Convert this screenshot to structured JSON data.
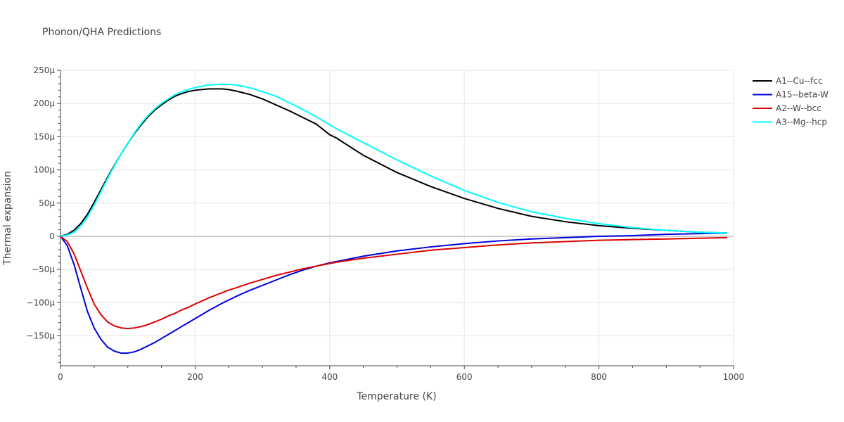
{
  "chart_data": {
    "type": "line",
    "title": "Phonon/QHA Predictions",
    "xlabel": "Temperature (K)",
    "ylabel": "Thermal expansion",
    "xlim": [
      0,
      1000
    ],
    "ylim": [
      -195,
      250
    ],
    "x_ticks": [
      0,
      200,
      400,
      600,
      800,
      1000
    ],
    "x_tick_labels": [
      "0",
      "200",
      "400",
      "600",
      "800",
      "1000"
    ],
    "y_ticks": [
      -150,
      -100,
      -50,
      0,
      50,
      100,
      150,
      200,
      250
    ],
    "y_tick_labels": [
      "−150μ",
      "−100μ",
      "−50μ",
      "0",
      "50μ",
      "100μ",
      "150μ",
      "200μ",
      "250μ"
    ],
    "y_unit": "μ",
    "grid": true,
    "legend_position": "top-right",
    "x": [
      0,
      10,
      20,
      30,
      40,
      50,
      60,
      70,
      80,
      90,
      100,
      110,
      120,
      130,
      140,
      150,
      160,
      170,
      180,
      190,
      200,
      220,
      240,
      250,
      260,
      280,
      300,
      320,
      340,
      360,
      380,
      400,
      410,
      450,
      500,
      550,
      600,
      650,
      700,
      750,
      800,
      850,
      900,
      950,
      990
    ],
    "series": [
      {
        "name": "A1--Cu--fcc",
        "color": "#000000",
        "values": [
          0,
          3,
          9,
          19,
          33,
          51,
          70,
          89,
          107,
          124,
          140,
          155,
          168,
          180,
          190,
          198,
          205,
          211,
          215,
          218,
          220,
          222,
          222,
          221,
          219,
          214,
          207,
          198,
          189,
          179,
          169,
          153,
          148,
          122,
          96,
          75,
          57,
          42,
          30,
          22,
          16,
          12,
          9,
          6,
          5
        ]
      },
      {
        "name": "A15--beta-W",
        "color": "#0000dd",
        "values": [
          0,
          -14,
          -42,
          -78,
          -113,
          -138,
          -155,
          -167,
          -173,
          -176,
          -176,
          -174,
          -170,
          -165,
          -160,
          -154,
          -148,
          -142,
          -136,
          -130,
          -124,
          -112,
          -101,
          -96,
          -91,
          -82,
          -74,
          -66,
          -58,
          -51,
          -45,
          -40,
          -38,
          -30,
          -22,
          -16,
          -11,
          -7,
          -4,
          -2,
          0,
          1,
          3,
          4,
          5
        ]
      },
      {
        "name": "A2--W--bcc",
        "color": "#dd0000",
        "values": [
          0,
          -8,
          -26,
          -52,
          -78,
          -102,
          -118,
          -129,
          -135,
          -138,
          -139,
          -138,
          -136,
          -133,
          -129,
          -125,
          -120,
          -116,
          -111,
          -107,
          -102,
          -93,
          -85,
          -81,
          -78,
          -71,
          -65,
          -59,
          -54,
          -49,
          -45,
          -41,
          -39,
          -33,
          -27,
          -21,
          -17,
          -13,
          -10,
          -8,
          -6,
          -5,
          -4,
          -3,
          -2
        ]
      },
      {
        "name": "A3--Mg--hcp",
        "color": "#00ffff",
        "values": [
          0,
          2,
          6,
          15,
          29,
          47,
          67,
          87,
          106,
          124,
          140,
          156,
          170,
          182,
          192,
          200,
          207,
          213,
          218,
          221,
          224,
          228,
          229,
          229,
          228,
          224,
          218,
          211,
          201,
          191,
          180,
          168,
          162,
          141,
          115,
          91,
          69,
          51,
          37,
          27,
          19,
          13,
          9,
          6,
          5
        ]
      }
    ]
  }
}
